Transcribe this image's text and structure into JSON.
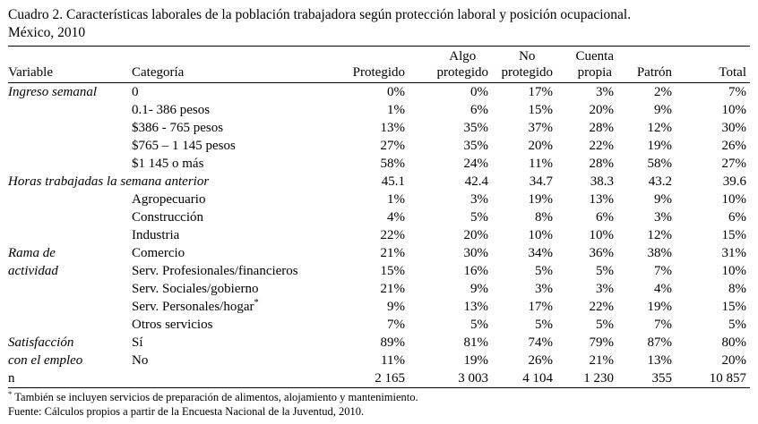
{
  "title": {
    "line1": "Cuadro 2. Características laborales de la población trabajadora según protección laboral y posición ocupacional.",
    "line2": "México, 2010"
  },
  "table": {
    "variable_header": "Variable",
    "category_header": "Categoría",
    "columns": [
      {
        "top": "",
        "bottom": "Protegido"
      },
      {
        "top": "Algo",
        "bottom": "protegido"
      },
      {
        "top": "No",
        "bottom": "protegido"
      },
      {
        "top": "Cuenta",
        "bottom": "propia"
      },
      {
        "top": "",
        "bottom": "Patrón"
      },
      {
        "top": "",
        "bottom": "Total"
      }
    ],
    "rows": [
      {
        "variable": "Ingreso semanal",
        "variable_italic": true,
        "category": "0",
        "values": [
          "0%",
          "0%",
          "17%",
          "3%",
          "2%",
          "7%"
        ]
      },
      {
        "variable": "",
        "category": "0.1- 386 pesos",
        "values": [
          "1%",
          "6%",
          "15%",
          "20%",
          "9%",
          "10%"
        ]
      },
      {
        "variable": "",
        "category": "$386 - 765 pesos",
        "values": [
          "13%",
          "35%",
          "37%",
          "28%",
          "12%",
          "30%"
        ]
      },
      {
        "variable": "",
        "category": "$765 – 1 145 pesos",
        "values": [
          "27%",
          "35%",
          "20%",
          "22%",
          "19%",
          "26%"
        ]
      },
      {
        "variable": "",
        "category": "$1 145 o más",
        "values": [
          "58%",
          "24%",
          "11%",
          "28%",
          "58%",
          "27%"
        ]
      },
      {
        "variable": "Horas trabajadas la semana anterior",
        "variable_italic": true,
        "span_category": true,
        "category": "",
        "values": [
          "45.1",
          "42.4",
          "34.7",
          "38.3",
          "43.2",
          "39.6"
        ]
      },
      {
        "variable": "",
        "category": "Agropecuario",
        "values": [
          "1%",
          "3%",
          "19%",
          "13%",
          "9%",
          "10%"
        ]
      },
      {
        "variable": "",
        "category": "Construcción",
        "values": [
          "4%",
          "5%",
          "8%",
          "6%",
          "3%",
          "6%"
        ]
      },
      {
        "variable": "",
        "category": "Industria",
        "values": [
          "22%",
          "20%",
          "10%",
          "10%",
          "12%",
          "15%"
        ]
      },
      {
        "variable": "Rama de",
        "variable_italic": true,
        "category": "Comercio",
        "values": [
          "21%",
          "30%",
          "34%",
          "36%",
          "38%",
          "31%"
        ]
      },
      {
        "variable": "actividad",
        "variable_italic": true,
        "category": "Serv. Profesionales/financieros",
        "values": [
          "15%",
          "16%",
          "5%",
          "5%",
          "7%",
          "10%"
        ]
      },
      {
        "variable": "",
        "category": "Serv. Sociales/gobierno",
        "values": [
          "21%",
          "9%",
          "3%",
          "3%",
          "4%",
          "8%"
        ]
      },
      {
        "variable": "",
        "category": "Serv. Personales/hogar",
        "category_sup": "*",
        "values": [
          "9%",
          "13%",
          "17%",
          "22%",
          "19%",
          "15%"
        ]
      },
      {
        "variable": "",
        "category": "Otros servicios",
        "values": [
          "7%",
          "5%",
          "5%",
          "5%",
          "7%",
          "5%"
        ]
      },
      {
        "variable": "Satisfacción",
        "variable_italic": true,
        "category": "Sí",
        "values": [
          "89%",
          "81%",
          "74%",
          "79%",
          "87%",
          "80%"
        ]
      },
      {
        "variable": "con el empleo",
        "variable_italic": true,
        "category": "No",
        "values": [
          "11%",
          "19%",
          "26%",
          "21%",
          "13%",
          "20%"
        ]
      },
      {
        "variable": "n",
        "variable_italic": false,
        "category": "",
        "values": [
          "2 165",
          "3 003",
          "4 104",
          "1 230",
          "355",
          "10 857"
        ]
      }
    ]
  },
  "footnotes": {
    "marker": "*",
    "note": "También se incluyen servicios de preparación de alimentos, alojamiento y mantenimiento.",
    "source": "Fuente: Cálculos propios a partir de la Encuesta Nacional de la Juventud, 2010."
  }
}
